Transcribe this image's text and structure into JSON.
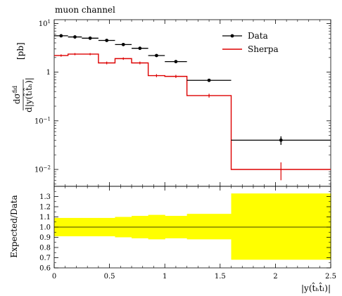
{
  "title": "muon channel",
  "top_ylabel": {
    "numerator": "dσ",
    "numerator_sup": "fid",
    "denominator": "d|y(t̂ₗt̂ₕ)|",
    "unit": "[pb]"
  },
  "bottom_ylabel": "Expected/Data",
  "xlabel": "|y(t̂ₕt̂ₗ)|",
  "legend": [
    {
      "label": "Data",
      "color": "#000000",
      "marker": "dot"
    },
    {
      "label": "Sherpa",
      "color": "#dd0000",
      "marker": "line"
    }
  ],
  "colors": {
    "data": "#000000",
    "sherpa": "#dd0000",
    "band": "#ffff00",
    "axis": "#000000"
  },
  "chart_data": [
    {
      "type": "line",
      "panel": "main",
      "title": "muon channel",
      "xlim": [
        0,
        2.5
      ],
      "ylim": [
        0.0045,
        12
      ],
      "yscale": "log",
      "grid": false,
      "legend_position": "top-right",
      "x_ticks": [
        0,
        0.5,
        1,
        1.5,
        2,
        2.5
      ],
      "y_ticks": [
        {
          "value": 10,
          "base": "10",
          "exp": "1"
        },
        {
          "value": 1,
          "base": "1",
          "exp": ""
        },
        {
          "value": 0.1,
          "base": "10",
          "exp": "−1"
        },
        {
          "value": 0.01,
          "base": "10",
          "exp": "−2"
        }
      ],
      "bins": [
        [
          0.0,
          0.125
        ],
        [
          0.125,
          0.25
        ],
        [
          0.25,
          0.4
        ],
        [
          0.4,
          0.55
        ],
        [
          0.55,
          0.7
        ],
        [
          0.7,
          0.85
        ],
        [
          0.85,
          1.0
        ],
        [
          1.0,
          1.2
        ],
        [
          1.2,
          1.6
        ],
        [
          1.6,
          2.5
        ]
      ],
      "series": [
        {
          "name": "Data",
          "style": "points",
          "x": [
            0.0625,
            0.1875,
            0.325,
            0.475,
            0.625,
            0.775,
            0.925,
            1.1,
            1.4,
            2.05
          ],
          "y": [
            5.6,
            5.3,
            5.0,
            4.5,
            3.7,
            3.1,
            2.2,
            1.65,
            0.68,
            0.04
          ],
          "yerr": [
            0.15,
            0.15,
            0.15,
            0.14,
            0.12,
            0.1,
            0.08,
            0.07,
            0.04,
            0.008
          ]
        },
        {
          "name": "Sherpa",
          "style": "histogram",
          "y": [
            2.2,
            2.35,
            2.35,
            1.55,
            1.9,
            1.55,
            0.85,
            0.82,
            0.33,
            0.01
          ],
          "yerr": [
            0.12,
            0.12,
            0.12,
            0.1,
            0.11,
            0.1,
            0.06,
            0.06,
            0.03,
            0.004
          ]
        }
      ]
    },
    {
      "type": "area",
      "panel": "ratio",
      "xlabel": "|y(t̂ₕt̂ₗ)|",
      "ylabel": "Expected/Data",
      "xlim": [
        0,
        2.5
      ],
      "ylim": [
        0.6,
        1.4
      ],
      "grid": false,
      "x_ticks": [
        0,
        0.5,
        1,
        1.5,
        2,
        2.5
      ],
      "y_ticks": [
        0.6,
        0.7,
        0.8,
        0.9,
        1.0,
        1.1,
        1.2,
        1.3
      ],
      "reference_line": 1.0,
      "series": [
        {
          "name": "Data uncertainty",
          "bins": [
            [
              0.0,
              0.125
            ],
            [
              0.125,
              0.25
            ],
            [
              0.25,
              0.4
            ],
            [
              0.4,
              0.55
            ],
            [
              0.55,
              0.7
            ],
            [
              0.7,
              0.85
            ],
            [
              0.85,
              1.0
            ],
            [
              1.0,
              1.2
            ],
            [
              1.2,
              1.6
            ],
            [
              1.6,
              2.5
            ]
          ],
          "low": [
            0.91,
            0.91,
            0.91,
            0.91,
            0.9,
            0.89,
            0.88,
            0.89,
            0.88,
            0.68
          ],
          "high": [
            1.09,
            1.09,
            1.09,
            1.09,
            1.1,
            1.11,
            1.12,
            1.11,
            1.13,
            1.33
          ]
        }
      ]
    }
  ]
}
